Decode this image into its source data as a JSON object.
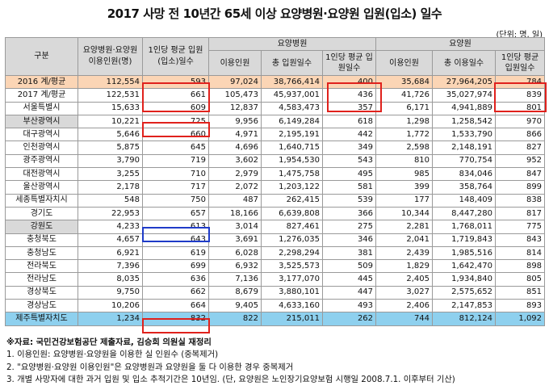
{
  "title": "2017 사망 전 10년간 65세 이상 요양병원·요양원 입원(입소) 일수",
  "unit": "(단위: 명, 일)",
  "headers": {
    "region": "구분",
    "combined_users": "요양병원·요양원 이용인원(명)",
    "combined_avg": "1인당 평균 입원(입소)일수",
    "hospital_group": "요양병원",
    "hospital_users": "이용인원",
    "hospital_total": "총 입원일수",
    "hospital_avg": "1인당 평균 입원일수",
    "care_group": "요양원",
    "care_users": "이용인원",
    "care_total": "총 이용일수",
    "care_avg": "1인당 평균 입원일수"
  },
  "rows": [
    {
      "region": "2016 계/평균",
      "cu": "112,554",
      "ca": "593",
      "hu": "97,024",
      "ht": "38,766,414",
      "ha": "400",
      "ru": "35,684",
      "rt": "27,964,205",
      "ra": "784"
    },
    {
      "region": "2017 계/평균",
      "cu": "122,531",
      "ca": "661",
      "hu": "105,473",
      "ht": "45,937,001",
      "ha": "436",
      "ru": "41,726",
      "rt": "35,027,974",
      "ra": "839"
    },
    {
      "region": "서울특별시",
      "cu": "15,633",
      "ca": "609",
      "hu": "12,837",
      "ht": "4,583,473",
      "ha": "357",
      "ru": "6,171",
      "rt": "4,941,889",
      "ra": "801"
    },
    {
      "region": "부산광역시",
      "cu": "10,221",
      "ca": "725",
      "hu": "9,956",
      "ht": "6,149,284",
      "ha": "618",
      "ru": "1,298",
      "rt": "1,258,542",
      "ra": "970"
    },
    {
      "region": "대구광역시",
      "cu": "5,646",
      "ca": "660",
      "hu": "4,971",
      "ht": "2,195,191",
      "ha": "442",
      "ru": "1,772",
      "rt": "1,533,790",
      "ra": "866"
    },
    {
      "region": "인천광역시",
      "cu": "5,875",
      "ca": "645",
      "hu": "4,696",
      "ht": "1,640,715",
      "ha": "349",
      "ru": "2,598",
      "rt": "2,148,191",
      "ra": "827"
    },
    {
      "region": "광주광역시",
      "cu": "3,790",
      "ca": "719",
      "hu": "3,602",
      "ht": "1,954,530",
      "ha": "543",
      "ru": "810",
      "rt": "770,754",
      "ra": "952"
    },
    {
      "region": "대전광역시",
      "cu": "3,255",
      "ca": "710",
      "hu": "2,979",
      "ht": "1,475,758",
      "ha": "495",
      "ru": "985",
      "rt": "834,046",
      "ra": "847"
    },
    {
      "region": "울산광역시",
      "cu": "2,178",
      "ca": "717",
      "hu": "2,072",
      "ht": "1,203,122",
      "ha": "581",
      "ru": "399",
      "rt": "358,764",
      "ra": "899"
    },
    {
      "region": "세종특별자치시",
      "cu": "548",
      "ca": "750",
      "hu": "487",
      "ht": "262,415",
      "ha": "539",
      "ru": "177",
      "rt": "148,409",
      "ra": "838"
    },
    {
      "region": "경기도",
      "cu": "22,953",
      "ca": "657",
      "hu": "18,166",
      "ht": "6,639,808",
      "ha": "366",
      "ru": "10,344",
      "rt": "8,447,280",
      "ra": "817"
    },
    {
      "region": "강원도",
      "cu": "4,233",
      "ca": "613",
      "hu": "3,014",
      "ht": "827,461",
      "ha": "275",
      "ru": "2,281",
      "rt": "1,768,011",
      "ra": "775"
    },
    {
      "region": "충청북도",
      "cu": "4,657",
      "ca": "643",
      "hu": "3,691",
      "ht": "1,276,035",
      "ha": "346",
      "ru": "2,041",
      "rt": "1,719,843",
      "ra": "843"
    },
    {
      "region": "충청남도",
      "cu": "6,921",
      "ca": "619",
      "hu": "6,028",
      "ht": "2,298,294",
      "ha": "381",
      "ru": "2,439",
      "rt": "1,985,516",
      "ra": "814"
    },
    {
      "region": "전라북도",
      "cu": "7,396",
      "ca": "699",
      "hu": "6,932",
      "ht": "3,525,573",
      "ha": "509",
      "ru": "1,829",
      "rt": "1,642,470",
      "ra": "898"
    },
    {
      "region": "전라남도",
      "cu": "8,035",
      "ca": "636",
      "hu": "7,136",
      "ht": "3,177,070",
      "ha": "445",
      "ru": "2,405",
      "rt": "1,934,840",
      "ra": "805"
    },
    {
      "region": "경상북도",
      "cu": "9,750",
      "ca": "662",
      "hu": "8,679",
      "ht": "3,880,101",
      "ha": "447",
      "ru": "3,027",
      "rt": "2,575,652",
      "ra": "851"
    },
    {
      "region": "경상남도",
      "cu": "10,206",
      "ca": "664",
      "hu": "9,405",
      "ht": "4,633,160",
      "ha": "493",
      "ru": "2,406",
      "rt": "2,147,853",
      "ra": "893"
    },
    {
      "region": "제주특별자치도",
      "cu": "1,234",
      "ca": "832",
      "hu": "822",
      "ht": "215,011",
      "ha": "262",
      "ru": "744",
      "rt": "812,124",
      "ra": "1,092"
    }
  ],
  "notes": {
    "source": "※자료: 국민건강보험공단 제출자료, 김승희 의원실 재정리",
    "n1": "1. 이용인원: 요양병원·요양원을 이용한 실 인원수 (중복제거)",
    "n2": "2. \"요양병원·요양원 이용인원\"은 요양병원과 요양원을 둘 다 이용한 경우 중복제거",
    "n3": "3. 개별 사망자에 대한 과거 입원 및 입소 추적기간은 10년임. (단, 요양원은 노인장기요양보험 시행일 2008.7.1. 이후부터 기산)"
  },
  "colors": {
    "total_row": "#fbd5b5",
    "highlight_row": "#8ed0ee",
    "header": "#d9d9d9",
    "red_box": "#e0211c",
    "blue_box": "#1f3bc8"
  }
}
